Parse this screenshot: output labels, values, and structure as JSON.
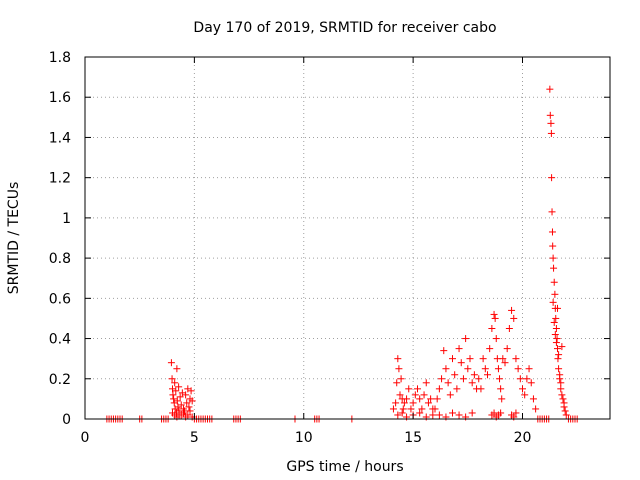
{
  "chart_data": {
    "type": "scatter",
    "title": "Day 170 of 2019, SRMTID for receiver cabo",
    "xlabel": "GPS time / hours",
    "ylabel": "SRMTID / TECUs",
    "xlim": [
      0,
      24
    ],
    "ylim": [
      0,
      1.8
    ],
    "xticks": [
      0,
      5,
      10,
      15,
      20
    ],
    "xtick_labels": [
      "0",
      "5",
      "10",
      "15",
      "20"
    ],
    "yticks": [
      0,
      0.2,
      0.4,
      0.6,
      0.8,
      1.0,
      1.2,
      1.4,
      1.6,
      1.8
    ],
    "ytick_labels": [
      "0",
      "0.2",
      "0.4",
      "0.6",
      "0.8",
      "1",
      "1.2",
      "1.4",
      "1.6",
      "1.8"
    ],
    "grid": true,
    "marker": "+",
    "color": "#ff0000",
    "series": [
      {
        "name": "SRMTID",
        "x": [
          1.0,
          1.1,
          1.2,
          1.3,
          1.4,
          1.5,
          1.6,
          1.7,
          2.5,
          2.6,
          3.5,
          3.6,
          3.7,
          3.8,
          3.95,
          3.98,
          4.0,
          4.02,
          4.05,
          4.08,
          4.1,
          4.12,
          4.15,
          4.18,
          4.2,
          4.22,
          4.25,
          4.28,
          4.3,
          4.35,
          4.4,
          4.45,
          4.5,
          4.55,
          4.6,
          4.65,
          4.7,
          4.75,
          4.8,
          4.85,
          4.9,
          4.0,
          4.1,
          4.2,
          4.3,
          4.4,
          4.5,
          4.6,
          4.7,
          4.8,
          4.9,
          5.0,
          5.1,
          5.2,
          5.3,
          5.4,
          5.5,
          5.6,
          5.7,
          5.8,
          6.8,
          6.9,
          7.0,
          7.1,
          9.6,
          10.5,
          10.6,
          10.7,
          12.2,
          14.1,
          14.2,
          14.25,
          14.3,
          14.35,
          14.4,
          14.45,
          14.5,
          14.55,
          14.6,
          14.7,
          14.8,
          14.9,
          15.0,
          15.1,
          15.2,
          15.3,
          15.4,
          15.5,
          15.6,
          15.7,
          15.8,
          15.9,
          14.3,
          14.5,
          14.7,
          15.0,
          15.3,
          15.6,
          15.9,
          16.0,
          16.1,
          16.2,
          16.3,
          16.4,
          16.5,
          16.6,
          16.7,
          16.8,
          16.9,
          17.0,
          17.1,
          17.2,
          17.3,
          17.4,
          17.5,
          17.6,
          17.7,
          17.8,
          17.9,
          16.2,
          16.5,
          16.8,
          17.1,
          17.4,
          17.7,
          18.0,
          18.1,
          18.2,
          18.3,
          18.4,
          18.5,
          18.6,
          18.7,
          18.75,
          18.8,
          18.85,
          18.9,
          18.95,
          19.0,
          19.05,
          19.1,
          19.2,
          19.3,
          19.4,
          19.5,
          19.6,
          19.7,
          19.8,
          19.9,
          18.6,
          18.7,
          18.8,
          18.9,
          19.0,
          19.5,
          19.6,
          19.7,
          20.0,
          20.1,
          20.2,
          20.3,
          20.4,
          20.5,
          20.6,
          20.7,
          20.8,
          20.9,
          21.0,
          21.1,
          21.2,
          21.25,
          21.27,
          21.3,
          21.32,
          21.33,
          21.35,
          21.37,
          21.38,
          21.4,
          21.42,
          21.45,
          21.48,
          21.5,
          21.52,
          21.55,
          21.58,
          21.6,
          21.62,
          21.65,
          21.7,
          21.75,
          21.8,
          21.85,
          21.9,
          21.95,
          22.0,
          21.4,
          21.45,
          21.5,
          21.55,
          21.6,
          21.65,
          21.7,
          21.75,
          21.8,
          21.9,
          22.1,
          22.2,
          22.3,
          22.4,
          22.5
        ],
        "y": [
          0,
          0,
          0,
          0,
          0,
          0,
          0,
          0,
          0,
          0,
          0,
          0,
          0,
          0,
          0.28,
          0.2,
          0.15,
          0.12,
          0.1,
          0.08,
          0.18,
          0.05,
          0.14,
          0.03,
          0.25,
          0.09,
          0.06,
          0.16,
          0.02,
          0.11,
          0.07,
          0.13,
          0.05,
          0.04,
          0.12,
          0.08,
          0.15,
          0.06,
          0.1,
          0.14,
          0.09,
          0.03,
          0.02,
          0.01,
          0.04,
          0.02,
          0.03,
          0.01,
          0.02,
          0.04,
          0.01,
          0,
          0,
          0,
          0,
          0,
          0,
          0,
          0,
          0,
          0,
          0,
          0,
          0,
          0,
          0,
          0,
          0,
          0,
          0.05,
          0.08,
          0.18,
          0.3,
          0.25,
          0.12,
          0.2,
          0.1,
          0.05,
          0.08,
          0.1,
          0.15,
          0.05,
          0.08,
          0.12,
          0.15,
          0.1,
          0.05,
          0.12,
          0.18,
          0.08,
          0.1,
          0.05,
          0.02,
          0.03,
          0.01,
          0.02,
          0.03,
          0.01,
          0.02,
          0.05,
          0.1,
          0.15,
          0.2,
          0.34,
          0.25,
          0.18,
          0.12,
          0.3,
          0.22,
          0.15,
          0.35,
          0.28,
          0.2,
          0.4,
          0.25,
          0.3,
          0.18,
          0.22,
          0.15,
          0.02,
          0.01,
          0.03,
          0.02,
          0.01,
          0.03,
          0.2,
          0.15,
          0.3,
          0.25,
          0.22,
          0.35,
          0.45,
          0.52,
          0.5,
          0.4,
          0.3,
          0.25,
          0.2,
          0.15,
          0.1,
          0.3,
          0.28,
          0.35,
          0.45,
          0.54,
          0.5,
          0.3,
          0.25,
          0.2,
          0.02,
          0.03,
          0.01,
          0.02,
          0.03,
          0.02,
          0.01,
          0.03,
          0.15,
          0.12,
          0.2,
          0.25,
          0.18,
          0.1,
          0.05,
          0,
          0,
          0,
          0,
          0,
          0,
          1.64,
          1.51,
          1.47,
          1.42,
          1.2,
          1.03,
          0.93,
          0.86,
          0.8,
          0.75,
          0.68,
          0.62,
          0.55,
          0.5,
          0.45,
          0.4,
          0.35,
          0.3,
          0.25,
          0.2,
          0.15,
          0.12,
          0.1,
          0.06,
          0.04,
          0.02,
          0.58,
          0.48,
          0.42,
          0.38,
          0.55,
          0.32,
          0.22,
          0.18,
          0.36,
          0.08,
          0,
          0,
          0,
          0,
          0
        ]
      }
    ]
  }
}
